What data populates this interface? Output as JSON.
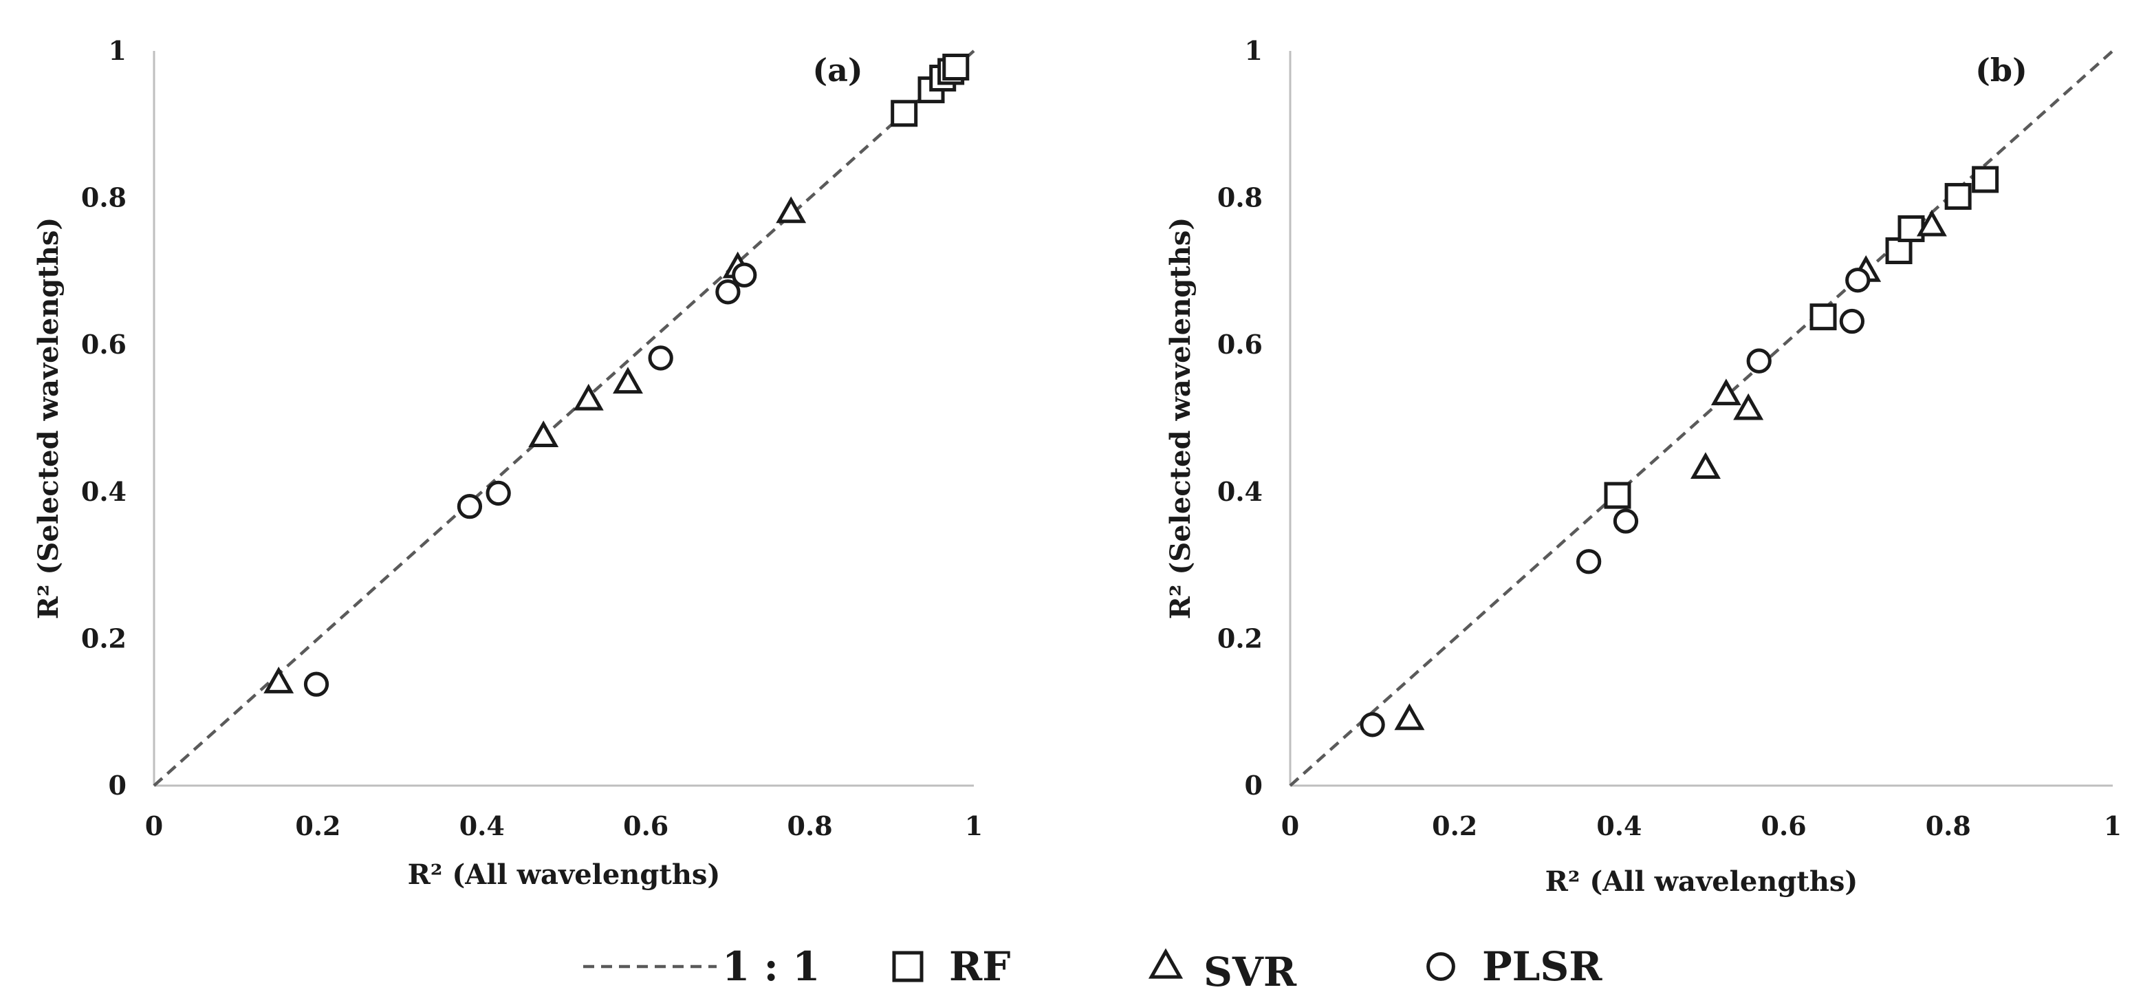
{
  "chart_data": [
    {
      "type": "scatter",
      "panel_label": "(a)",
      "xlabel": "R² (All wavelengths)",
      "ylabel": "R² (Selected wavelengths)",
      "xlim": [
        0,
        1
      ],
      "ylim": [
        0,
        1
      ],
      "x_ticks": [
        "0",
        "0.2",
        "0.4",
        "0.6",
        "0.8",
        "1"
      ],
      "y_ticks": [
        "0",
        "0.2",
        "0.4",
        "0.6",
        "0.8",
        "1"
      ],
      "reference_line": "1 : 1",
      "series": [
        {
          "name": "RF",
          "marker": "square",
          "points": [
            [
              0.915,
              0.915
            ],
            [
              0.948,
              0.947
            ],
            [
              0.962,
              0.963
            ],
            [
              0.972,
              0.972
            ],
            [
              0.978,
              0.978
            ]
          ]
        },
        {
          "name": "SVR",
          "marker": "triangle",
          "points": [
            [
              0.152,
              0.14
            ],
            [
              0.475,
              0.475
            ],
            [
              0.53,
              0.525
            ],
            [
              0.578,
              0.548
            ],
            [
              0.712,
              0.705
            ],
            [
              0.777,
              0.78
            ]
          ]
        },
        {
          "name": "PLSR",
          "marker": "circle",
          "points": [
            [
              0.198,
              0.138
            ],
            [
              0.385,
              0.38
            ],
            [
              0.42,
              0.398
            ],
            [
              0.618,
              0.582
            ],
            [
              0.7,
              0.672
            ],
            [
              0.72,
              0.695
            ]
          ]
        }
      ]
    },
    {
      "type": "scatter",
      "panel_label": "(b)",
      "xlabel": "R² (All wavelengths)",
      "ylabel": "R² (Selected wavelengths)",
      "xlim": [
        0,
        1
      ],
      "ylim": [
        0,
        1
      ],
      "x_ticks": [
        "0",
        "0.2",
        "0.4",
        "0.6",
        "0.8",
        "1"
      ],
      "y_ticks": [
        "0",
        "0.2",
        "0.4",
        "0.6",
        "0.8",
        "1"
      ],
      "reference_line": "1 : 1",
      "series": [
        {
          "name": "RF",
          "marker": "square",
          "points": [
            [
              0.398,
              0.395
            ],
            [
              0.648,
              0.638
            ],
            [
              0.74,
              0.728
            ],
            [
              0.755,
              0.758
            ],
            [
              0.812,
              0.802
            ],
            [
              0.845,
              0.825
            ]
          ]
        },
        {
          "name": "SVR",
          "marker": "triangle",
          "points": [
            [
              0.145,
              0.09
            ],
            [
              0.505,
              0.432
            ],
            [
              0.53,
              0.532
            ],
            [
              0.557,
              0.512
            ],
            [
              0.7,
              0.7
            ],
            [
              0.78,
              0.762
            ]
          ]
        },
        {
          "name": "PLSR",
          "marker": "circle",
          "points": [
            [
              0.1,
              0.083
            ],
            [
              0.363,
              0.305
            ],
            [
              0.408,
              0.36
            ],
            [
              0.57,
              0.578
            ],
            [
              0.683,
              0.632
            ],
            [
              0.69,
              0.688
            ]
          ]
        }
      ]
    }
  ],
  "legend": {
    "items": [
      {
        "key": "line",
        "label": "1 : 1"
      },
      {
        "key": "square",
        "label": "RF"
      },
      {
        "key": "triangle",
        "label": "SVR"
      },
      {
        "key": "circle",
        "label": "PLSR"
      }
    ]
  },
  "colors": {
    "ink": "#1a1a1a",
    "axis": "#bfbfbf",
    "reference_line": "#5a5a5a"
  }
}
